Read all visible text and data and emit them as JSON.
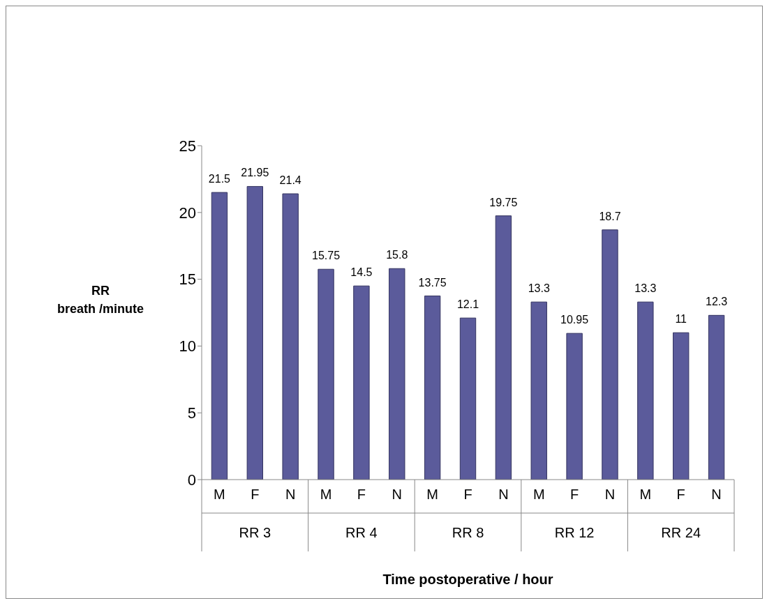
{
  "chart_data": {
    "type": "bar",
    "ylabel": "RR\nbreath /minute",
    "xlabel": "Time postoperative / hour",
    "categories": [
      "M",
      "F",
      "N",
      "M",
      "F",
      "N",
      "M",
      "F",
      "N",
      "M",
      "F",
      "N",
      "M",
      "F",
      "N"
    ],
    "annotations": [
      "RR 3",
      "RR 4",
      "RR 8",
      "RR 12",
      "RR 24"
    ],
    "values": [
      21.5,
      21.95,
      21.4,
      15.75,
      14.5,
      15.8,
      13.75,
      12.1,
      19.75,
      13.3,
      10.95,
      18.7,
      13.3,
      11,
      12.3
    ],
    "color": "#5b5b9b",
    "ylim": [
      0,
      25
    ],
    "yticks": [
      0,
      5,
      10,
      15,
      20,
      25
    ],
    "data_labels": true,
    "grid": false,
    "legend": false
  }
}
